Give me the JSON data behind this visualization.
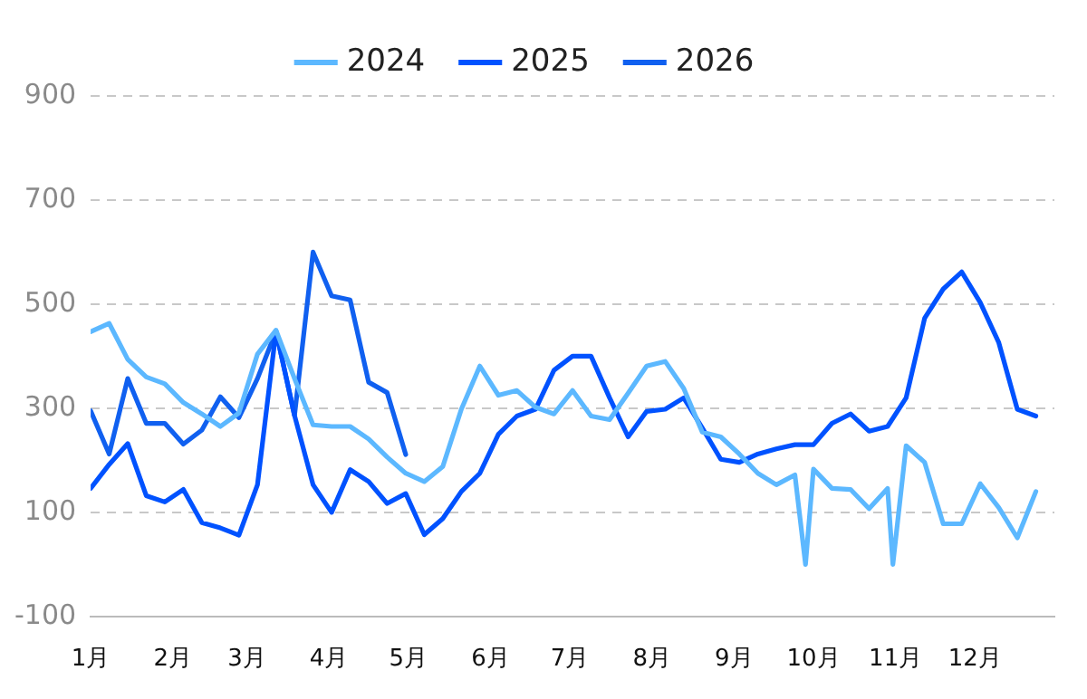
{
  "chart_data": {
    "type": "line",
    "legend": "top",
    "grid": "y",
    "marker": "none",
    "line_style": "solid",
    "xlim": [
      "--01-01",
      "--12-31"
    ],
    "xticks": [
      {
        "value": "--01-01",
        "label": "1月"
      },
      {
        "value": "--02-01",
        "label": "2月"
      },
      {
        "value": "--03-01",
        "label": "3月"
      },
      {
        "value": "--04-01",
        "label": "4月"
      },
      {
        "value": "--05-01",
        "label": "5月"
      },
      {
        "value": "--06-01",
        "label": "6月"
      },
      {
        "value": "--07-01",
        "label": "7月"
      },
      {
        "value": "--08-01",
        "label": "8月"
      },
      {
        "value": "--09-01",
        "label": "9月"
      },
      {
        "value": "--10-01",
        "label": "10月"
      },
      {
        "value": "--11-01",
        "label": "11月"
      },
      {
        "value": "--12-01",
        "label": "12月"
      }
    ],
    "ylim": [
      -100,
      900
    ],
    "yticks": [
      -100,
      100,
      300,
      500,
      700,
      900
    ],
    "series": [
      {
        "name": "2024",
        "color": "#5cb8ff",
        "x": [
          "--01-01",
          "--01-08",
          "--01-15",
          "--01-22",
          "--01-29",
          "--02-05",
          "--02-12",
          "--02-19",
          "--02-26",
          "--03-05",
          "--03-12",
          "--03-19",
          "--03-26",
          "--04-02",
          "--04-09",
          "--04-16",
          "--04-23",
          "--04-30",
          "--05-07",
          "--05-14",
          "--05-21",
          "--05-28",
          "--06-04",
          "--06-11",
          "--06-18",
          "--06-25",
          "--07-02",
          "--07-09",
          "--07-16",
          "--07-23",
          "--07-30",
          "--08-06",
          "--08-13",
          "--08-20",
          "--08-27",
          "--09-03",
          "--09-10",
          "--09-17",
          "--09-24",
          "--09-28",
          "--10-01",
          "--10-08",
          "--10-15",
          "--10-22",
          "--10-29",
          "--10-31",
          "--11-05",
          "--11-12",
          "--11-19",
          "--11-26",
          "--12-03",
          "--12-10",
          "--12-17",
          "--12-24"
        ],
        "values": [
          447,
          463,
          394,
          360,
          347,
          311,
          289,
          265,
          291,
          404,
          450,
          357,
          268,
          265,
          265,
          241,
          206,
          175,
          159,
          188,
          298,
          381,
          325,
          334,
          302,
          289,
          334,
          285,
          278,
          329,
          381,
          390,
          338,
          254,
          245,
          212,
          175,
          153,
          172,
          0,
          183,
          146,
          144,
          107,
          146,
          0,
          228,
          196,
          78,
          78,
          155,
          109,
          51,
          140
        ]
      },
      {
        "name": "2025",
        "color": "#0052ff",
        "x": [
          "--01-01",
          "--01-08",
          "--01-15",
          "--01-22",
          "--01-29",
          "--02-05",
          "--02-12",
          "--02-19",
          "--02-26",
          "--03-05",
          "--03-12",
          "--03-19",
          "--03-26",
          "--04-02",
          "--04-09",
          "--04-16",
          "--04-23",
          "--04-30",
          "--05-07",
          "--05-14",
          "--05-21",
          "--05-28",
          "--06-04",
          "--06-11",
          "--06-18",
          "--06-25",
          "--07-02",
          "--07-09",
          "--07-16",
          "--07-23",
          "--07-30",
          "--08-06",
          "--08-13",
          "--08-20",
          "--08-27",
          "--09-03",
          "--09-10",
          "--09-17",
          "--09-24",
          "--10-01",
          "--10-08",
          "--10-15",
          "--10-22",
          "--10-29",
          "--11-05",
          "--11-12",
          "--11-19",
          "--11-26",
          "--12-03",
          "--12-10",
          "--12-17",
          "--12-24"
        ],
        "values": [
          146,
          192,
          232,
          132,
          120,
          144,
          80,
          70,
          56,
          153,
          448,
          286,
          153,
          100,
          182,
          159,
          117,
          136,
          57,
          88,
          140,
          175,
          250,
          285,
          298,
          373,
          400,
          400,
          320,
          245,
          294,
          298,
          320,
          262,
          202,
          196,
          212,
          222,
          230,
          230,
          271,
          289,
          256,
          265,
          320,
          473,
          529,
          562,
          503,
          426,
          298,
          285
        ]
      },
      {
        "name": "2026",
        "color": "#1060f0",
        "x": [
          "--01-01",
          "--01-08",
          "--01-15",
          "--01-22",
          "--01-29",
          "--02-05",
          "--02-12",
          "--02-19",
          "--02-26",
          "--03-05",
          "--03-12",
          "--03-19",
          "--03-26",
          "--04-02",
          "--04-09",
          "--04-16",
          "--04-23",
          "--04-30"
        ],
        "values": [
          295,
          212,
          357,
          271,
          271,
          231,
          258,
          322,
          282,
          357,
          448,
          286,
          600,
          516,
          508,
          350,
          330,
          211
        ]
      }
    ]
  }
}
